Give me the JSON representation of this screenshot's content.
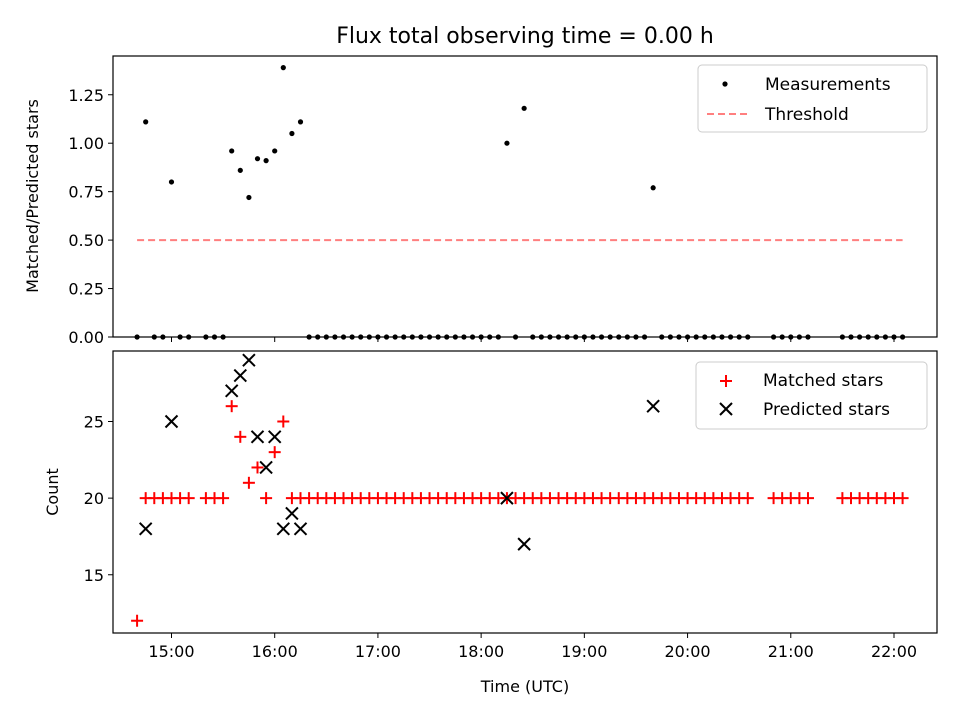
{
  "figure_title": "Flux total observing time = 0.00 h",
  "chart_data": [
    {
      "type": "scatter",
      "title": "Flux total observing time = 0.00 h",
      "xlabel": "",
      "ylabel": "Matched/Predicted stars",
      "xlim": [
        "14:26",
        "22:25"
      ],
      "ylim": [
        0,
        1.45
      ],
      "yticks": [
        "0.00",
        "0.25",
        "0.50",
        "0.75",
        "1.00",
        "1.25"
      ],
      "xticks": [
        "15:00",
        "16:00",
        "17:00",
        "18:00",
        "19:00",
        "20:00",
        "21:00",
        "22:00"
      ],
      "legend_position": "top-right",
      "series": [
        {
          "name": "Measurements",
          "marker": "dot",
          "color": "#000000",
          "points": [
            [
              "14:40",
              0
            ],
            [
              "14:45",
              1.11
            ],
            [
              "14:50",
              0
            ],
            [
              "14:55",
              0
            ],
            [
              "15:00",
              0.8
            ],
            [
              "15:05",
              0
            ],
            [
              "15:10",
              0
            ],
            [
              "15:20",
              0
            ],
            [
              "15:25",
              0
            ],
            [
              "15:30",
              0
            ],
            [
              "15:35",
              0.96
            ],
            [
              "15:40",
              0.86
            ],
            [
              "15:45",
              0.72
            ],
            [
              "15:50",
              0.92
            ],
            [
              "15:55",
              0.91
            ],
            [
              "16:00",
              0.96
            ],
            [
              "16:05",
              1.39
            ],
            [
              "16:10",
              1.05
            ],
            [
              "16:15",
              1.11
            ],
            [
              "16:20",
              0
            ],
            [
              "16:25",
              0
            ],
            [
              "16:30",
              0
            ],
            [
              "16:35",
              0
            ],
            [
              "16:40",
              0
            ],
            [
              "16:45",
              0
            ],
            [
              "16:50",
              0
            ],
            [
              "16:55",
              0
            ],
            [
              "17:00",
              0
            ],
            [
              "17:05",
              0
            ],
            [
              "17:10",
              0
            ],
            [
              "17:15",
              0
            ],
            [
              "17:20",
              0
            ],
            [
              "17:25",
              0
            ],
            [
              "17:30",
              0
            ],
            [
              "17:35",
              0
            ],
            [
              "17:40",
              0
            ],
            [
              "17:45",
              0
            ],
            [
              "17:50",
              0
            ],
            [
              "17:55",
              0
            ],
            [
              "18:00",
              0
            ],
            [
              "18:05",
              0
            ],
            [
              "18:10",
              0
            ],
            [
              "18:15",
              1.0
            ],
            [
              "18:20",
              0
            ],
            [
              "18:25",
              1.18
            ],
            [
              "18:30",
              0
            ],
            [
              "18:35",
              0
            ],
            [
              "18:40",
              0
            ],
            [
              "18:45",
              0
            ],
            [
              "18:50",
              0
            ],
            [
              "18:55",
              0
            ],
            [
              "19:00",
              0
            ],
            [
              "19:05",
              0
            ],
            [
              "19:10",
              0
            ],
            [
              "19:15",
              0
            ],
            [
              "19:20",
              0
            ],
            [
              "19:25",
              0
            ],
            [
              "19:30",
              0
            ],
            [
              "19:35",
              0
            ],
            [
              "19:40",
              0.77
            ],
            [
              "19:45",
              0
            ],
            [
              "19:50",
              0
            ],
            [
              "19:55",
              0
            ],
            [
              "20:00",
              0
            ],
            [
              "20:05",
              0
            ],
            [
              "20:10",
              0
            ],
            [
              "20:15",
              0
            ],
            [
              "20:20",
              0
            ],
            [
              "20:25",
              0
            ],
            [
              "20:30",
              0
            ],
            [
              "20:35",
              0
            ],
            [
              "20:50",
              0
            ],
            [
              "20:55",
              0
            ],
            [
              "21:00",
              0
            ],
            [
              "21:05",
              0
            ],
            [
              "21:10",
              0
            ],
            [
              "21:30",
              0
            ],
            [
              "21:35",
              0
            ],
            [
              "21:40",
              0
            ],
            [
              "21:45",
              0
            ],
            [
              "21:50",
              0
            ],
            [
              "21:55",
              0
            ],
            [
              "22:00",
              0
            ],
            [
              "22:05",
              0
            ]
          ]
        },
        {
          "name": "Threshold",
          "marker": "dashed-line",
          "color": "#ff7f7f",
          "points": [
            [
              "14:40",
              0.5
            ],
            [
              "22:05",
              0.5
            ]
          ]
        }
      ]
    },
    {
      "type": "scatter",
      "title": "",
      "xlabel": "Time (UTC)",
      "ylabel": "Count",
      "xlim": [
        "14:26",
        "22:25"
      ],
      "ylim": [
        11.2,
        29.6
      ],
      "yticks": [
        "15",
        "20",
        "25"
      ],
      "xticks": [
        "15:00",
        "16:00",
        "17:00",
        "18:00",
        "19:00",
        "20:00",
        "21:00",
        "22:00"
      ],
      "legend_position": "top-right",
      "series": [
        {
          "name": "Matched stars",
          "marker": "plus",
          "color": "#ff0000",
          "points": [
            [
              "14:40",
              12
            ],
            [
              "14:45",
              20
            ],
            [
              "14:50",
              20
            ],
            [
              "14:55",
              20
            ],
            [
              "15:00",
              20
            ],
            [
              "15:05",
              20
            ],
            [
              "15:10",
              20
            ],
            [
              "15:20",
              20
            ],
            [
              "15:25",
              20
            ],
            [
              "15:30",
              20
            ],
            [
              "15:35",
              26
            ],
            [
              "15:40",
              24
            ],
            [
              "15:45",
              21
            ],
            [
              "15:50",
              22
            ],
            [
              "15:55",
              20
            ],
            [
              "16:00",
              23
            ],
            [
              "16:05",
              25
            ],
            [
              "16:10",
              20
            ],
            [
              "16:15",
              20
            ],
            [
              "16:20",
              20
            ],
            [
              "16:25",
              20
            ],
            [
              "16:30",
              20
            ],
            [
              "16:35",
              20
            ],
            [
              "16:40",
              20
            ],
            [
              "16:45",
              20
            ],
            [
              "16:50",
              20
            ],
            [
              "16:55",
              20
            ],
            [
              "17:00",
              20
            ],
            [
              "17:05",
              20
            ],
            [
              "17:10",
              20
            ],
            [
              "17:15",
              20
            ],
            [
              "17:20",
              20
            ],
            [
              "17:25",
              20
            ],
            [
              "17:30",
              20
            ],
            [
              "17:35",
              20
            ],
            [
              "17:40",
              20
            ],
            [
              "17:45",
              20
            ],
            [
              "17:50",
              20
            ],
            [
              "17:55",
              20
            ],
            [
              "18:00",
              20
            ],
            [
              "18:05",
              20
            ],
            [
              "18:10",
              20
            ],
            [
              "18:15",
              20
            ],
            [
              "18:20",
              20
            ],
            [
              "18:25",
              20
            ],
            [
              "18:30",
              20
            ],
            [
              "18:35",
              20
            ],
            [
              "18:40",
              20
            ],
            [
              "18:45",
              20
            ],
            [
              "18:50",
              20
            ],
            [
              "18:55",
              20
            ],
            [
              "19:00",
              20
            ],
            [
              "19:05",
              20
            ],
            [
              "19:10",
              20
            ],
            [
              "19:15",
              20
            ],
            [
              "19:20",
              20
            ],
            [
              "19:25",
              20
            ],
            [
              "19:30",
              20
            ],
            [
              "19:35",
              20
            ],
            [
              "19:40",
              20
            ],
            [
              "19:45",
              20
            ],
            [
              "19:50",
              20
            ],
            [
              "19:55",
              20
            ],
            [
              "20:00",
              20
            ],
            [
              "20:05",
              20
            ],
            [
              "20:10",
              20
            ],
            [
              "20:15",
              20
            ],
            [
              "20:20",
              20
            ],
            [
              "20:25",
              20
            ],
            [
              "20:30",
              20
            ],
            [
              "20:35",
              20
            ],
            [
              "20:50",
              20
            ],
            [
              "20:55",
              20
            ],
            [
              "21:00",
              20
            ],
            [
              "21:05",
              20
            ],
            [
              "21:10",
              20
            ],
            [
              "21:30",
              20
            ],
            [
              "21:35",
              20
            ],
            [
              "21:40",
              20
            ],
            [
              "21:45",
              20
            ],
            [
              "21:50",
              20
            ],
            [
              "21:55",
              20
            ],
            [
              "22:00",
              20
            ],
            [
              "22:05",
              20
            ]
          ]
        },
        {
          "name": "Predicted stars",
          "marker": "x",
          "color": "#000000",
          "points": [
            [
              "14:45",
              18
            ],
            [
              "15:00",
              25
            ],
            [
              "15:35",
              27
            ],
            [
              "15:40",
              28
            ],
            [
              "15:45",
              29
            ],
            [
              "15:50",
              24
            ],
            [
              "15:55",
              22
            ],
            [
              "16:00",
              24
            ],
            [
              "16:05",
              18
            ],
            [
              "16:10",
              19
            ],
            [
              "16:15",
              18
            ],
            [
              "18:15",
              20
            ],
            [
              "18:25",
              17
            ],
            [
              "19:40",
              26
            ]
          ]
        }
      ]
    }
  ]
}
